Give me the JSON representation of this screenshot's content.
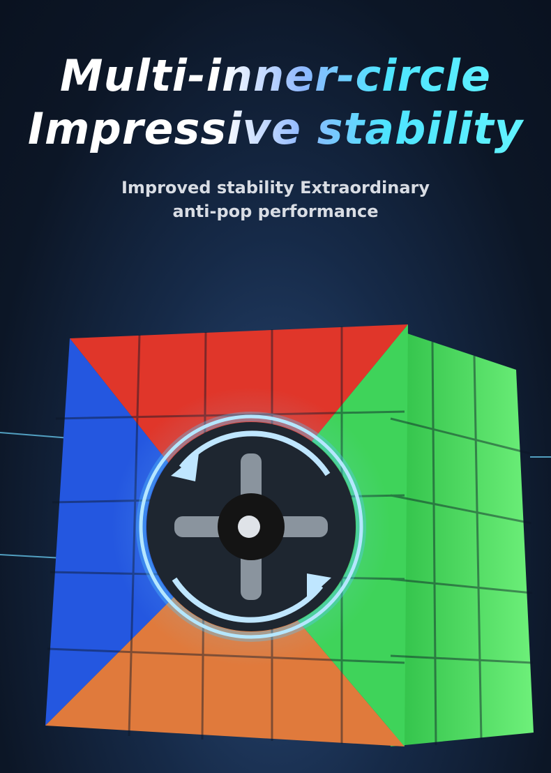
{
  "headline": {
    "line1": "Multi-inner-circle",
    "line2": "Impressive stability"
  },
  "subheadline": {
    "line1": "Improved stability Extraordinary",
    "line2": "anti-pop performance"
  },
  "colors": {
    "background": "#162a48",
    "accent_cyan": "#4ee4ff",
    "cube_red": "#e0362a",
    "cube_blue": "#2457e0",
    "cube_orange": "#e07a3c",
    "cube_green": "#3fd35a"
  }
}
